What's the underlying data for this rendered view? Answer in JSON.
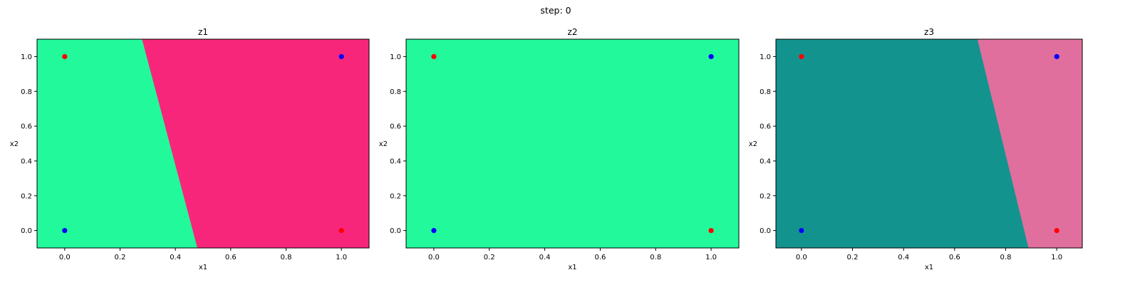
{
  "figure": {
    "suptitle": "step: 0"
  },
  "colors": {
    "red_point": "#ff0000",
    "blue_point": "#0000ff",
    "z1_left": "#22f99b",
    "z1_right": "#f7267b",
    "z2_fill": "#22f99b",
    "z3_left": "#13938e",
    "z3_right": "#e06f9e"
  },
  "chart_data": [
    {
      "type": "scatter",
      "title": "z1",
      "xlabel": "x1",
      "ylabel": "x2",
      "xlim": [
        -0.1,
        1.1
      ],
      "ylim": [
        -0.1,
        1.1
      ],
      "xticks": [
        "0.0",
        "0.2",
        "0.4",
        "0.6",
        "0.8",
        "1.0"
      ],
      "yticks": [
        "0.0",
        "0.2",
        "0.4",
        "0.6",
        "0.8",
        "1.0"
      ],
      "regions": [
        {
          "color": "#22f99b",
          "polygon": [
            [
              -0.1,
              -0.1
            ],
            [
              0.48,
              -0.1
            ],
            [
              0.28,
              1.1
            ],
            [
              -0.1,
              1.1
            ]
          ]
        },
        {
          "color": "#f7267b",
          "polygon": [
            [
              0.48,
              -0.1
            ],
            [
              1.1,
              -0.1
            ],
            [
              1.1,
              1.1
            ],
            [
              0.28,
              1.1
            ]
          ]
        }
      ],
      "points": [
        {
          "x": 0,
          "y": 1,
          "color": "#ff0000"
        },
        {
          "x": 1,
          "y": 1,
          "color": "#0000ff"
        },
        {
          "x": 0,
          "y": 0,
          "color": "#0000ff"
        },
        {
          "x": 1,
          "y": 0,
          "color": "#ff0000"
        }
      ]
    },
    {
      "type": "scatter",
      "title": "z2",
      "xlabel": "x1",
      "ylabel": "x2",
      "xlim": [
        -0.1,
        1.1
      ],
      "ylim": [
        -0.1,
        1.1
      ],
      "xticks": [
        "0.0",
        "0.2",
        "0.4",
        "0.6",
        "0.8",
        "1.0"
      ],
      "yticks": [
        "0.0",
        "0.2",
        "0.4",
        "0.6",
        "0.8",
        "1.0"
      ],
      "regions": [
        {
          "color": "#22f99b",
          "polygon": [
            [
              -0.1,
              -0.1
            ],
            [
              1.1,
              -0.1
            ],
            [
              1.1,
              1.1
            ],
            [
              -0.1,
              1.1
            ]
          ]
        }
      ],
      "points": [
        {
          "x": 0,
          "y": 1,
          "color": "#ff0000"
        },
        {
          "x": 1,
          "y": 1,
          "color": "#0000ff"
        },
        {
          "x": 0,
          "y": 0,
          "color": "#0000ff"
        },
        {
          "x": 1,
          "y": 0,
          "color": "#ff0000"
        }
      ]
    },
    {
      "type": "scatter",
      "title": "z3",
      "xlabel": "x1",
      "ylabel": "x2",
      "xlim": [
        -0.1,
        1.1
      ],
      "ylim": [
        -0.1,
        1.1
      ],
      "xticks": [
        "0.0",
        "0.2",
        "0.4",
        "0.6",
        "0.8",
        "1.0"
      ],
      "yticks": [
        "0.0",
        "0.2",
        "0.4",
        "0.6",
        "0.8",
        "1.0"
      ],
      "regions": [
        {
          "color": "#13938e",
          "polygon": [
            [
              -0.1,
              -0.1
            ],
            [
              0.89,
              -0.1
            ],
            [
              0.69,
              1.1
            ],
            [
              -0.1,
              1.1
            ]
          ]
        },
        {
          "color": "#e06f9e",
          "polygon": [
            [
              0.89,
              -0.1
            ],
            [
              1.1,
              -0.1
            ],
            [
              1.1,
              1.1
            ],
            [
              0.69,
              1.1
            ]
          ]
        }
      ],
      "points": [
        {
          "x": 0,
          "y": 1,
          "color": "#ff0000"
        },
        {
          "x": 1,
          "y": 1,
          "color": "#0000ff"
        },
        {
          "x": 0,
          "y": 0,
          "color": "#0000ff"
        },
        {
          "x": 1,
          "y": 0,
          "color": "#ff0000"
        }
      ]
    }
  ]
}
